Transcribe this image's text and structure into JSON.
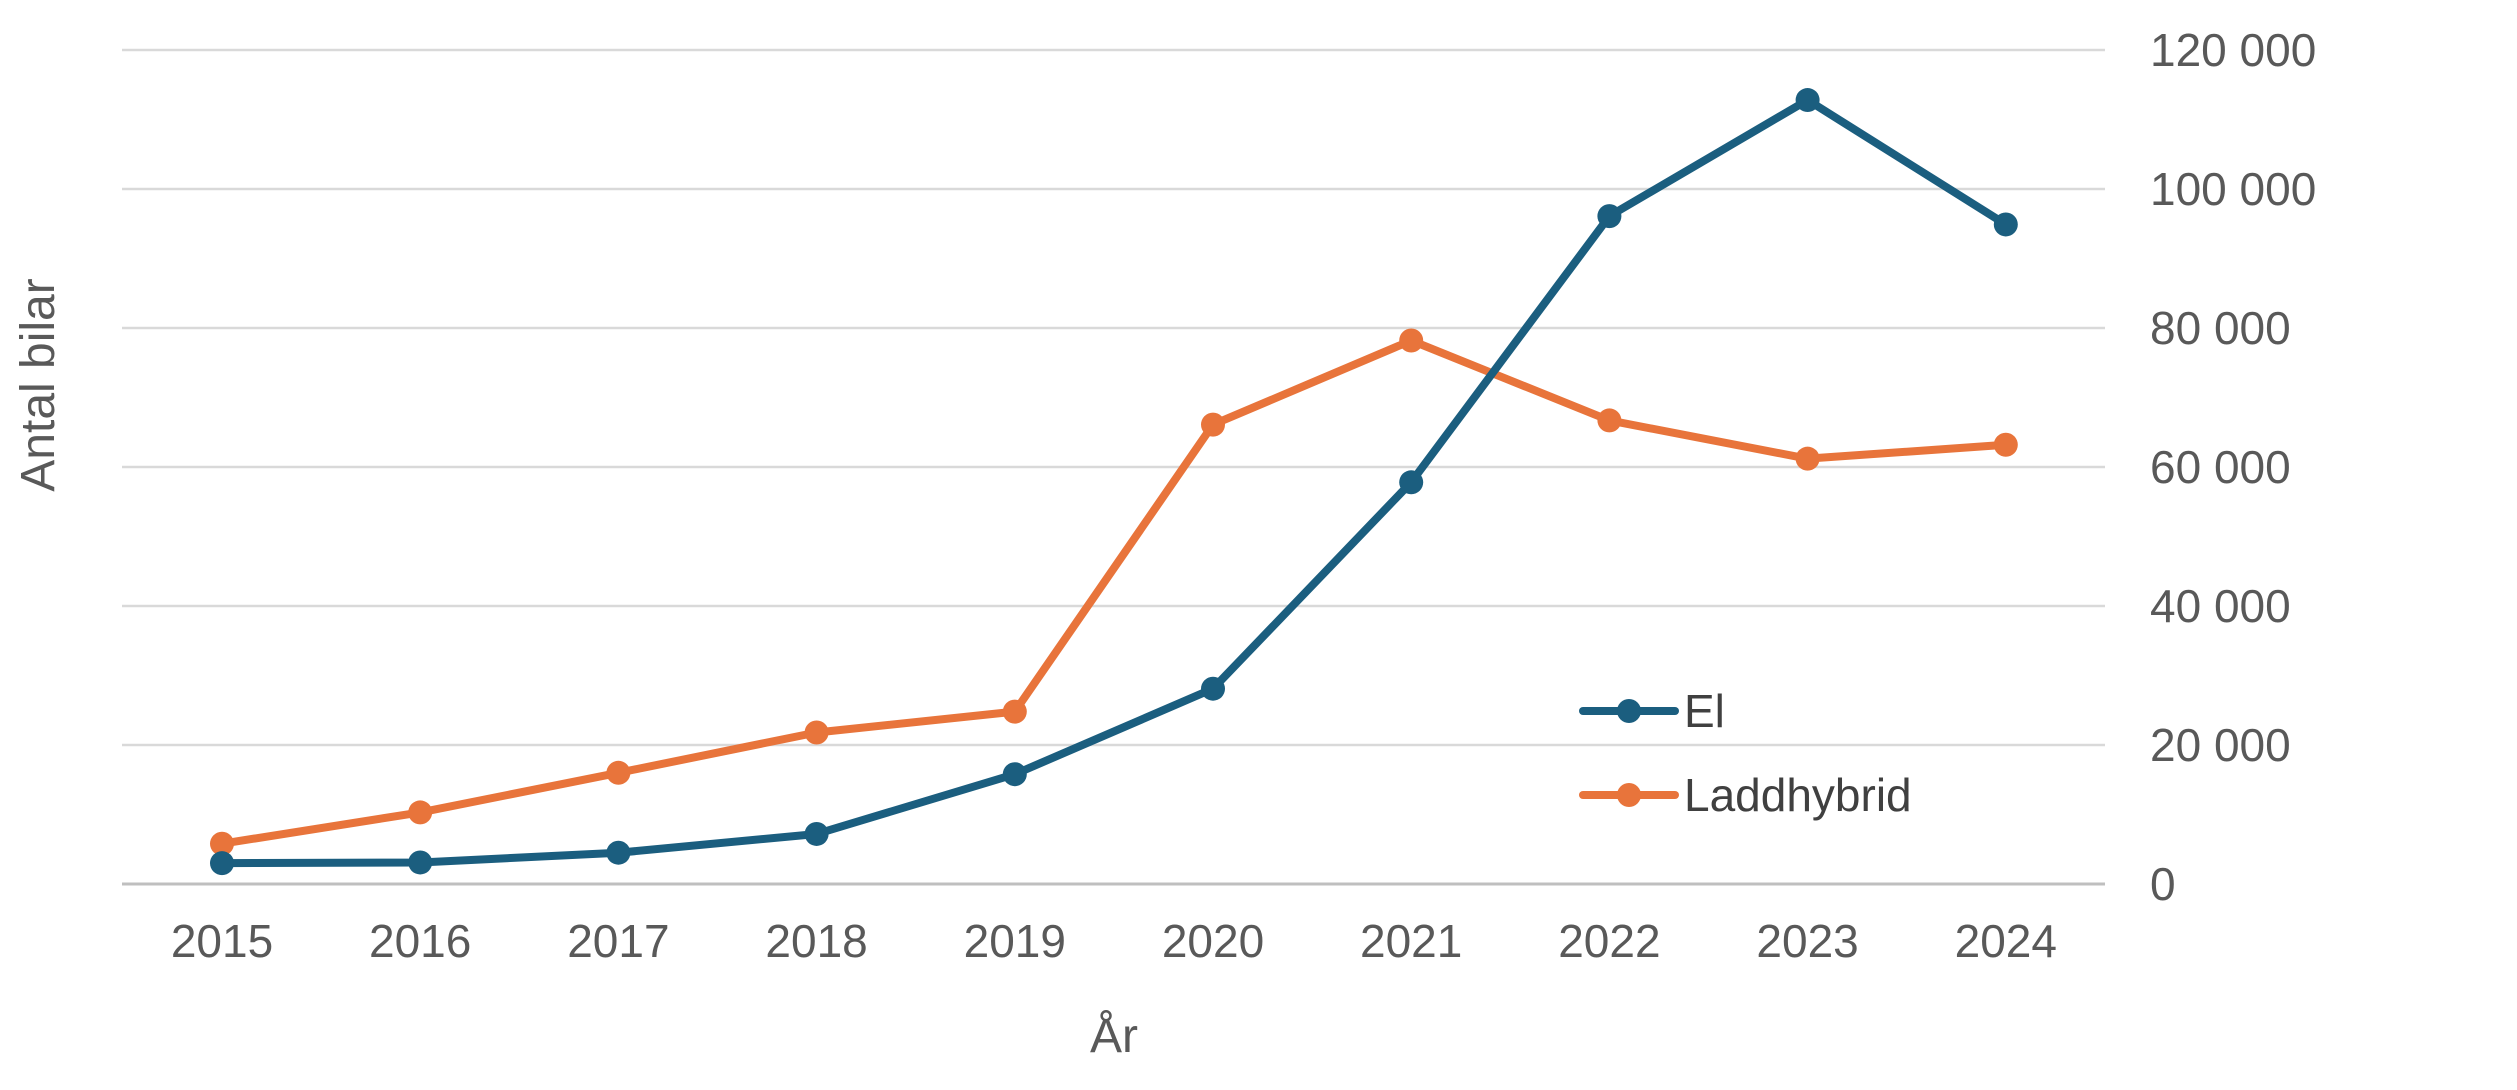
{
  "chart_data": {
    "type": "line",
    "title": "",
    "xlabel": "År",
    "ylabel": "Antal bilar",
    "categories": [
      "2015",
      "2016",
      "2017",
      "2018",
      "2019",
      "2020",
      "2021",
      "2022",
      "2023",
      "2024"
    ],
    "ylim": [
      0,
      120000
    ],
    "y_ticks": [
      0,
      20000,
      40000,
      60000,
      80000,
      100000,
      120000
    ],
    "y_tick_labels": [
      "0",
      "20 000",
      "40 000",
      "60 000",
      "80 000",
      "100 000",
      "120 000"
    ],
    "y_axis_position": "right",
    "grid": true,
    "legend_position": "center-right inside plot",
    "series": [
      {
        "name": "El",
        "color": "#1b5e7f",
        "values": [
          3000,
          3100,
          4500,
          7200,
          15800,
          28100,
          57800,
          96100,
          112800,
          94900
        ]
      },
      {
        "name": "Laddhybrid",
        "color": "#e8743b",
        "values": [
          5800,
          10300,
          16000,
          21800,
          24800,
          66100,
          78200,
          66700,
          61200,
          63200
        ]
      }
    ]
  }
}
